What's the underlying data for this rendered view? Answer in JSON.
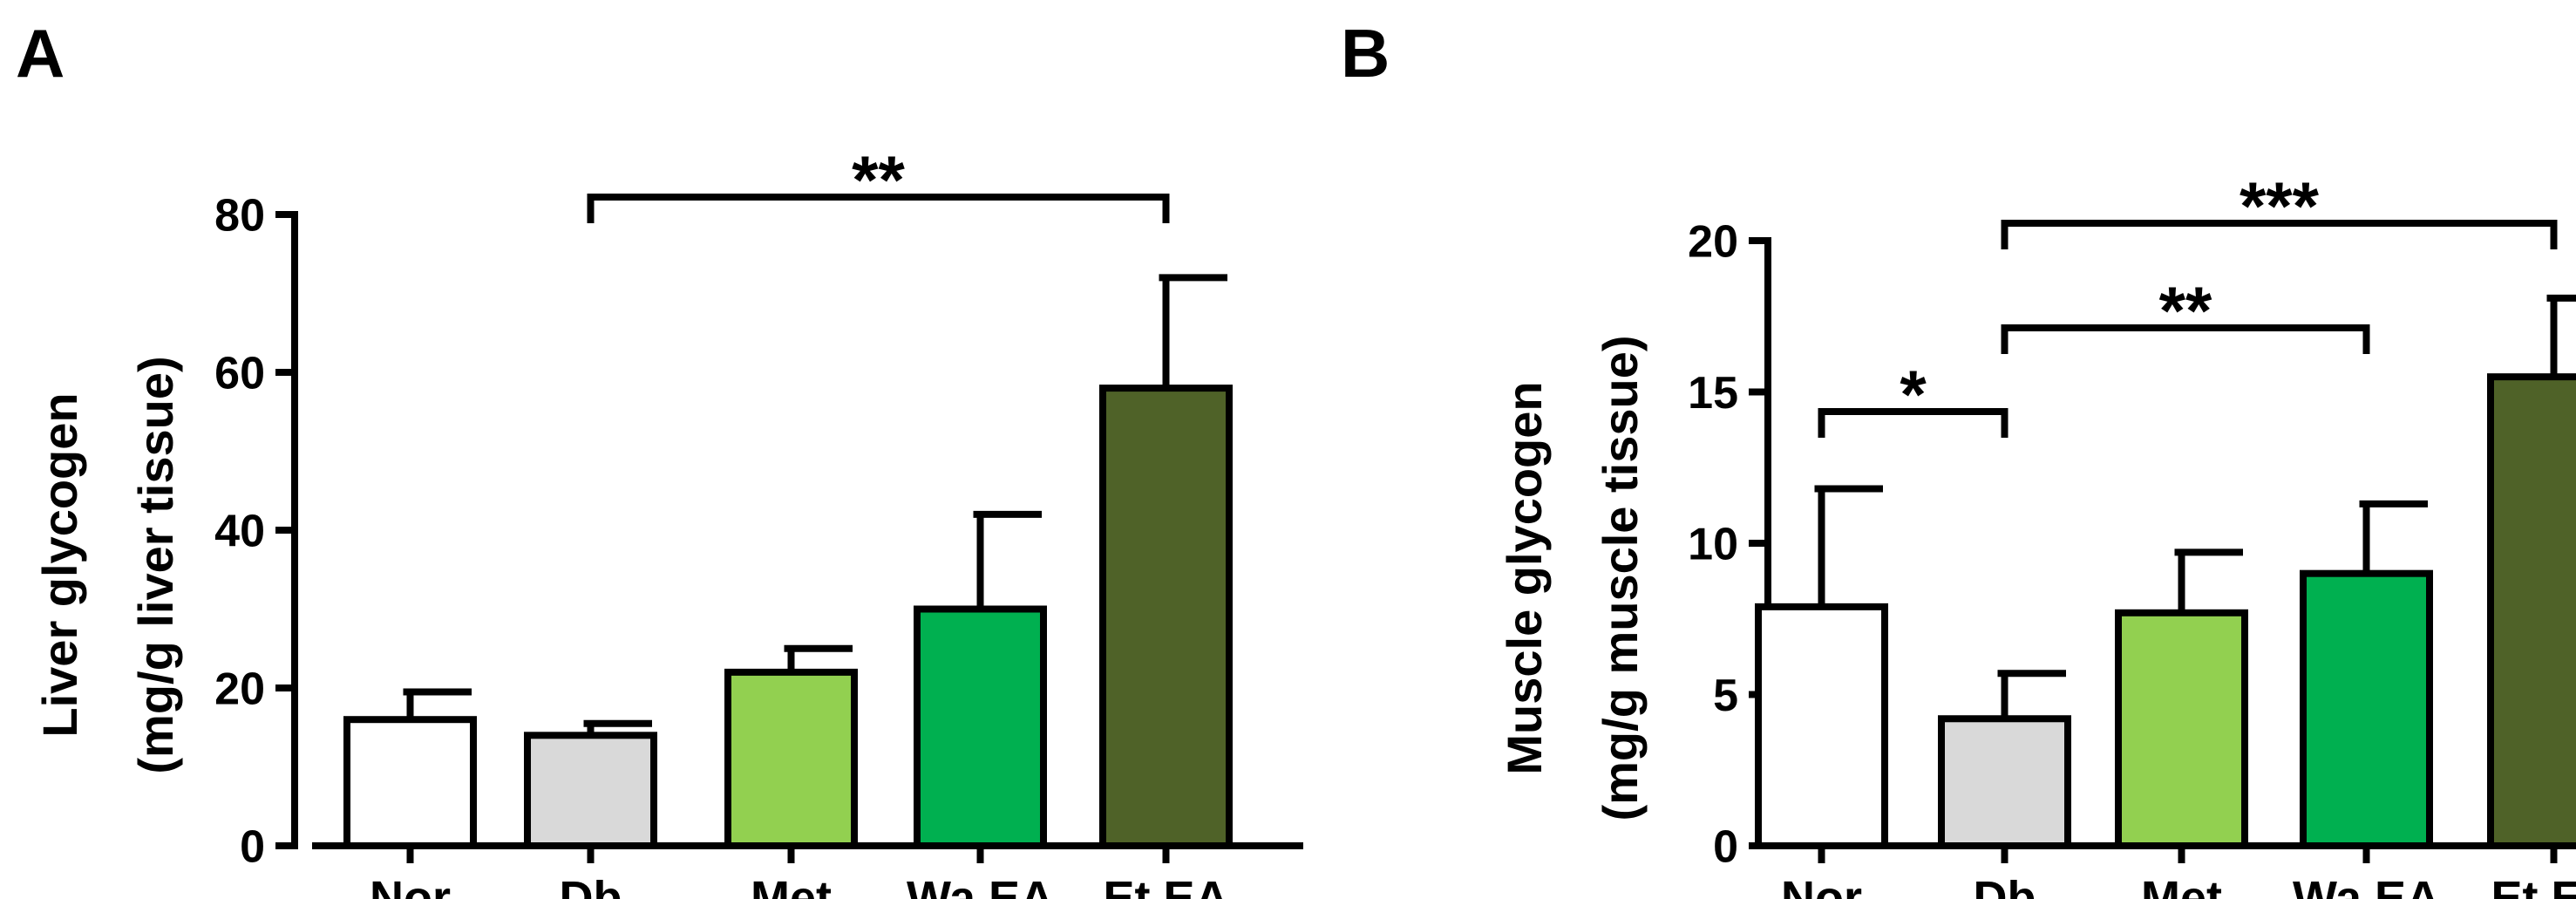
{
  "panels": [
    "A",
    "B"
  ],
  "chart_data": [
    {
      "type": "bar",
      "panel": "A",
      "categories": [
        "Nor",
        "Db",
        "Met",
        "Wa.EA",
        "Et.EA"
      ],
      "values": [
        16,
        14,
        22,
        30,
        58
      ],
      "errors": [
        3.5,
        1.5,
        3,
        12,
        14
      ],
      "bar_colors": [
        "#ffffff",
        "#d9d9d9",
        "#92d050",
        "#00b050",
        "#4f6228"
      ],
      "title": "",
      "xlabel": "",
      "ylabel_line1": "Liver glycogen",
      "ylabel_line2": "(mg/g liver tissue)",
      "ylim": [
        0,
        80
      ],
      "yticks": [
        0,
        20,
        40,
        60,
        80
      ],
      "grid": false,
      "significance": [
        {
          "from": "Db",
          "to": "Et.EA",
          "label": "**"
        }
      ]
    },
    {
      "type": "bar",
      "panel": "B",
      "categories": [
        "Nor",
        "Db",
        "Met",
        "Wa.EA",
        "Et.EA"
      ],
      "values": [
        7.9,
        4.2,
        7.7,
        9.0,
        15.5
      ],
      "errors": [
        3.9,
        1.5,
        2.0,
        2.3,
        2.6
      ],
      "bar_colors": [
        "#ffffff",
        "#d9d9d9",
        "#92d050",
        "#00b050",
        "#4f6228"
      ],
      "title": "",
      "xlabel": "",
      "ylabel_line1": "Muscle glycogen",
      "ylabel_line2": "(mg/g muscle tissue)",
      "ylim": [
        0,
        20
      ],
      "yticks": [
        0,
        5,
        10,
        15,
        20
      ],
      "grid": false,
      "significance": [
        {
          "from": "Nor",
          "to": "Db",
          "label": "*"
        },
        {
          "from": "Db",
          "to": "Wa.EA",
          "label": "**"
        },
        {
          "from": "Db",
          "to": "Et.EA",
          "label": "***"
        }
      ]
    }
  ]
}
